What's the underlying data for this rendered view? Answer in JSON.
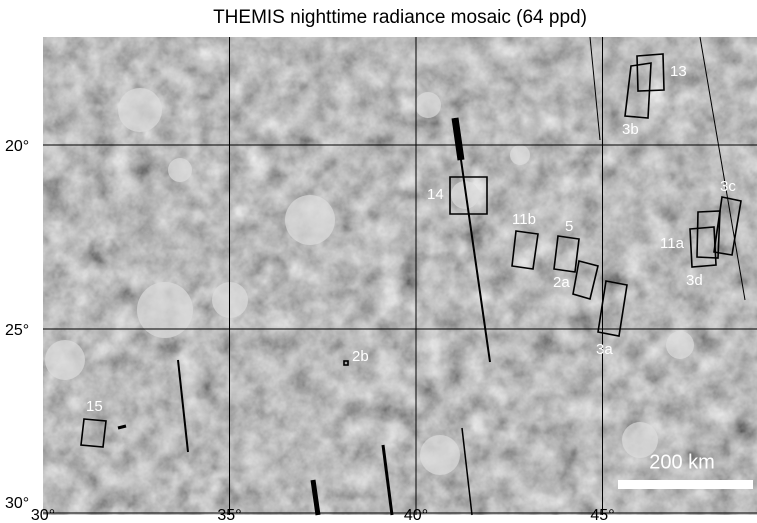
{
  "title": "THEMIS nighttime radiance mosaic (64 ppd)",
  "lat_ticks": [
    {
      "value": 20,
      "label": "20°"
    },
    {
      "value": 25,
      "label": "25°"
    },
    {
      "value": 30,
      "label": "30°"
    }
  ],
  "lon_ticks": [
    {
      "value": 30,
      "label": "30°"
    },
    {
      "value": 35,
      "label": "35°"
    },
    {
      "value": 40,
      "label": "40°"
    },
    {
      "value": 45,
      "label": "45°"
    }
  ],
  "regions": [
    "13",
    "3b",
    "14",
    "11b",
    "5",
    "2a",
    "3a",
    "11a",
    "3d",
    "3c",
    "2b",
    "15"
  ],
  "scale_bar": "200 km"
}
